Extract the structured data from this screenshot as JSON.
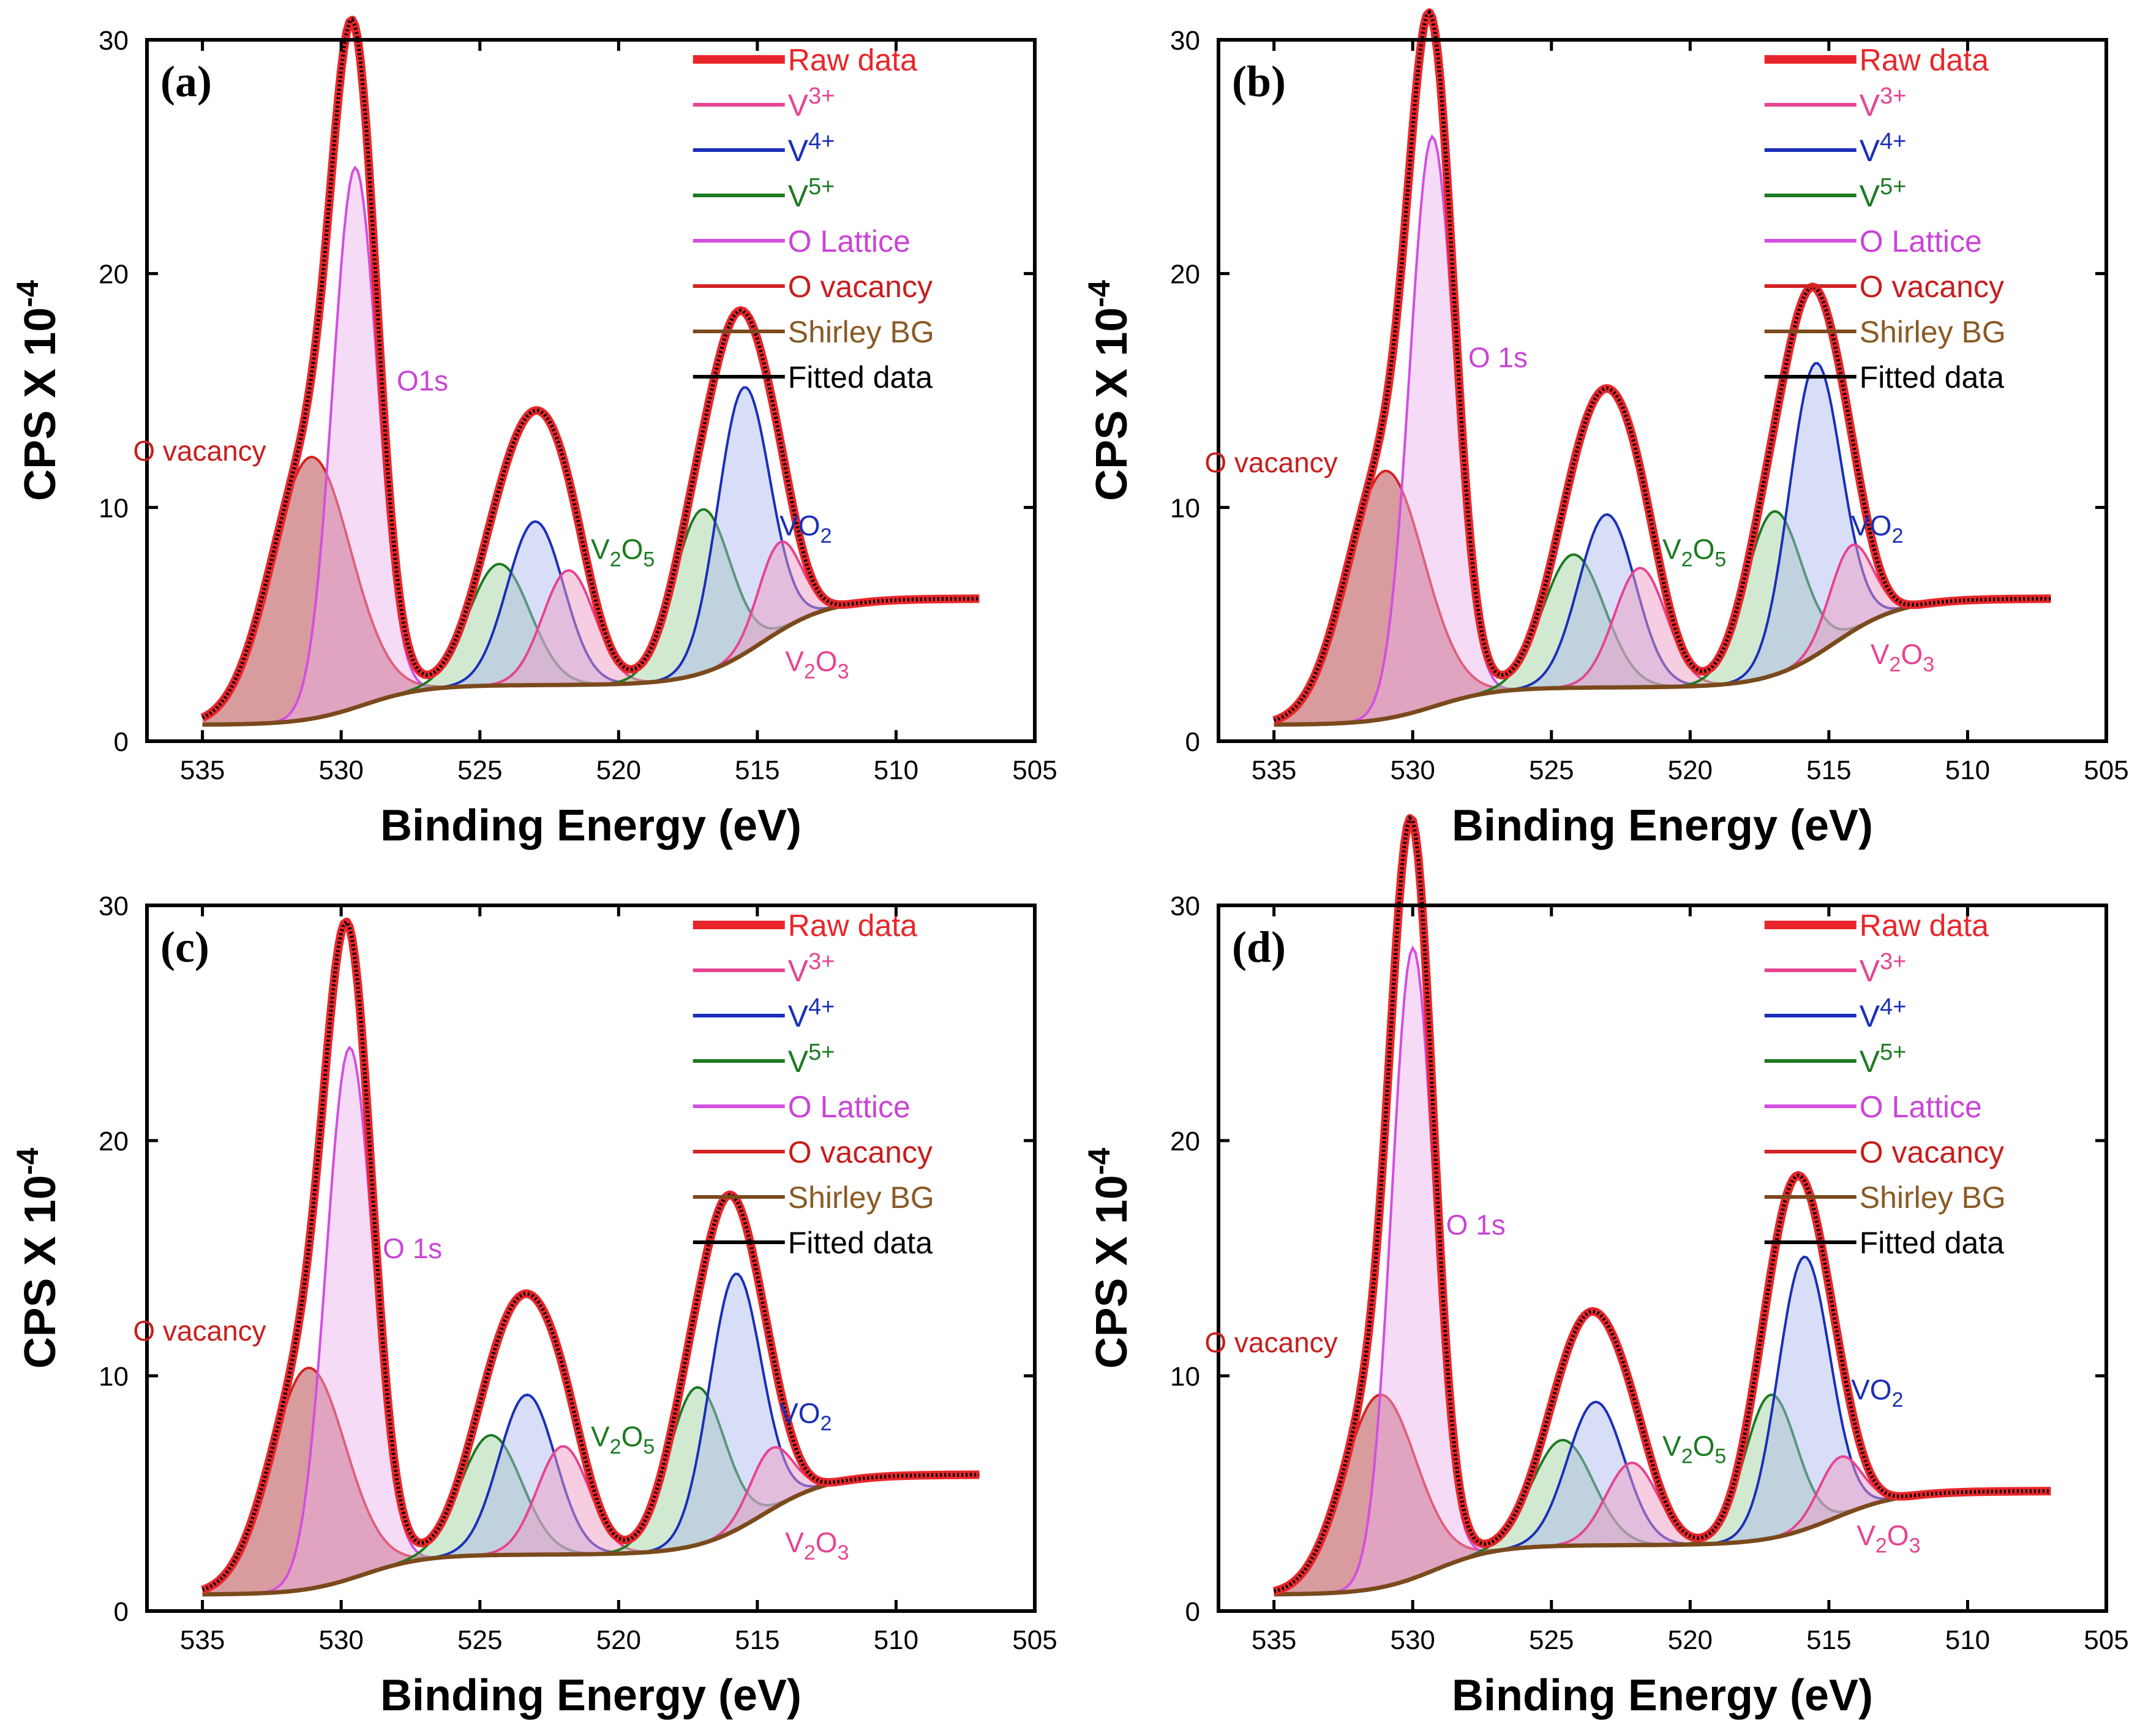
{
  "chart_data": [
    {
      "type": "line",
      "panel_label": "(a)",
      "xlabel": "Binding Energy (eV)",
      "ylabel": "CPS X 10",
      "ylabel_exponent": "-4",
      "xlim": [
        537,
        505
      ],
      "ylim": [
        0,
        30
      ],
      "xticks": [
        "535",
        "530",
        "525",
        "520",
        "515",
        "510",
        "505"
      ],
      "yticks": [
        "0",
        "10",
        "20",
        "30"
      ],
      "legend_position": "top-right",
      "legend": [
        {
          "key": "raw",
          "label": "Raw data",
          "color": "#e8262a",
          "text_color": "#e8262a"
        },
        {
          "key": "v3",
          "label": "V",
          "sup": "3+",
          "color": "#e64492",
          "text_color": "#e64492"
        },
        {
          "key": "v4",
          "label": "V",
          "sup": "4+",
          "color": "#1a2fb8",
          "text_color": "#1a2fb8"
        },
        {
          "key": "v5",
          "label": "V",
          "sup": "5+",
          "color": "#1d7a22",
          "text_color": "#1d7a22"
        },
        {
          "key": "olat",
          "label": "O Lattice",
          "color": "#d34fe0",
          "text_color": "#c945d6"
        },
        {
          "key": "ovac",
          "label": "O vacancy",
          "color": "#d42222",
          "text_color": "#c81e1e"
        },
        {
          "key": "bg",
          "label": "Shirley BG",
          "color": "#7a4a1c",
          "text_color": "#8a5a24"
        },
        {
          "key": "fit",
          "label": "Fitted data",
          "color": "#000000",
          "text_color": "#000000"
        }
      ],
      "annotations": [
        {
          "key": "o1s",
          "text": "O1s",
          "color": "#c945d6",
          "x": 528.0,
          "y": 15.0
        },
        {
          "key": "ovac",
          "text": "O vacancy",
          "color": "#c81e1e",
          "x": 537.5,
          "y": 12.0
        },
        {
          "key": "v2o5",
          "text": "V",
          "sub": "2",
          "text2": "O",
          "sub2": "5",
          "color": "#1d7a22",
          "x": 521.0,
          "y": 7.8
        },
        {
          "key": "vo2",
          "text": "VO",
          "sub": "2",
          "color": "#1a2fb8",
          "x": 514.2,
          "y": 8.8
        },
        {
          "key": "v2o3",
          "text": "V",
          "sub": "2",
          "text2": "O",
          "sub2": "3",
          "color": "#e64492",
          "x": 514.0,
          "y": 3.0
        }
      ],
      "background": {
        "start": 6.1,
        "mid": 4.4,
        "end": 0.7
      },
      "peaks": [
        {
          "species": "ovac",
          "center": 531.1,
          "height": 11.2,
          "fwhm": 3.4
        },
        {
          "species": "olat",
          "center": 529.5,
          "height": 23.1,
          "fwhm": 1.9
        },
        {
          "species": "v5",
          "center": 524.3,
          "height": 5.2,
          "fwhm": 2.6
        },
        {
          "species": "v4",
          "center": 523.0,
          "height": 7.0,
          "fwhm": 2.4
        },
        {
          "species": "v3",
          "center": 521.8,
          "height": 4.9,
          "fwhm": 2.2
        },
        {
          "species": "v5",
          "center": 517.0,
          "height": 7.0,
          "fwhm": 2.4
        },
        {
          "species": "v4",
          "center": 515.5,
          "height": 11.4,
          "fwhm": 2.2
        },
        {
          "species": "v3",
          "center": 514.2,
          "height": 3.8,
          "fwhm": 1.8
        }
      ]
    },
    {
      "type": "line",
      "panel_label": "(b)",
      "xlabel": "Binding Energy (eV)",
      "ylabel": "CPS X 10",
      "ylabel_exponent": "-4",
      "xlim": [
        537,
        505
      ],
      "ylim": [
        0,
        30
      ],
      "xticks": [
        "535",
        "530",
        "525",
        "520",
        "515",
        "510",
        "505"
      ],
      "yticks": [
        "0",
        "10",
        "20",
        "30"
      ],
      "legend_position": "top-right",
      "legend": [
        {
          "key": "raw",
          "label": "Raw data",
          "color": "#e8262a",
          "text_color": "#e8262a"
        },
        {
          "key": "v3",
          "label": "V",
          "sup": "3+",
          "color": "#e64492",
          "text_color": "#e64492"
        },
        {
          "key": "v4",
          "label": "V",
          "sup": "4+",
          "color": "#1a2fb8",
          "text_color": "#1a2fb8"
        },
        {
          "key": "v5",
          "label": "V",
          "sup": "5+",
          "color": "#1d7a22",
          "text_color": "#1d7a22"
        },
        {
          "key": "olat",
          "label": "O Lattice",
          "color": "#d34fe0",
          "text_color": "#c945d6"
        },
        {
          "key": "ovac",
          "label": "O vacancy",
          "color": "#d42222",
          "text_color": "#c81e1e"
        },
        {
          "key": "bg",
          "label": "Shirley BG",
          "color": "#7a4a1c",
          "text_color": "#8a5a24"
        },
        {
          "key": "fit",
          "label": "Fitted data",
          "color": "#000000",
          "text_color": "#000000"
        }
      ],
      "annotations": [
        {
          "key": "o1s",
          "text": "O 1s",
          "color": "#c945d6",
          "x": 528.0,
          "y": 16.0
        },
        {
          "key": "ovac",
          "text": "O vacancy",
          "color": "#c81e1e",
          "x": 537.5,
          "y": 11.5
        },
        {
          "key": "v2o5",
          "text": "V",
          "sub": "2",
          "text2": "O",
          "sub2": "5",
          "color": "#1d7a22",
          "x": 521.0,
          "y": 7.8
        },
        {
          "key": "vo2",
          "text": "VO",
          "sub": "2",
          "color": "#1a2fb8",
          "x": 514.2,
          "y": 8.8
        },
        {
          "key": "v2o3",
          "text": "V",
          "sub": "2",
          "text2": "O",
          "sub2": "3",
          "color": "#e64492",
          "x": 513.5,
          "y": 3.3
        }
      ],
      "background": {
        "start": 6.1,
        "mid": 4.5,
        "end": 0.7
      },
      "peaks": [
        {
          "species": "ovac",
          "center": 531.0,
          "height": 10.6,
          "fwhm": 3.3
        },
        {
          "species": "olat",
          "center": 529.3,
          "height": 24.4,
          "fwhm": 1.9
        },
        {
          "species": "v5",
          "center": 524.2,
          "height": 5.7,
          "fwhm": 2.6
        },
        {
          "species": "v4",
          "center": 523.0,
          "height": 7.4,
          "fwhm": 2.4
        },
        {
          "species": "v3",
          "center": 521.8,
          "height": 5.1,
          "fwhm": 2.2
        },
        {
          "species": "v5",
          "center": 517.0,
          "height": 7.0,
          "fwhm": 2.4
        },
        {
          "species": "v4",
          "center": 515.5,
          "height": 12.5,
          "fwhm": 2.2
        },
        {
          "species": "v3",
          "center": 514.2,
          "height": 3.7,
          "fwhm": 1.8
        }
      ]
    },
    {
      "type": "line",
      "panel_label": "(c)",
      "xlabel": "Binding Energy (eV)",
      "ylabel": "CPS X 10",
      "ylabel_exponent": "-4",
      "xlim": [
        537,
        505
      ],
      "ylim": [
        0,
        30
      ],
      "xticks": [
        "535",
        "530",
        "525",
        "520",
        "515",
        "510",
        "505"
      ],
      "yticks": [
        "0",
        "10",
        "20",
        "30"
      ],
      "legend_position": "top-right",
      "legend": [
        {
          "key": "raw",
          "label": "Raw data",
          "color": "#e8262a",
          "text_color": "#e8262a"
        },
        {
          "key": "v3",
          "label": "V",
          "sup": "3+",
          "color": "#e64492",
          "text_color": "#e64492"
        },
        {
          "key": "v4",
          "label": "V",
          "sup": "4+",
          "color": "#1a2fb8",
          "text_color": "#1a2fb8"
        },
        {
          "key": "v5",
          "label": "V",
          "sup": "5+",
          "color": "#1d7a22",
          "text_color": "#1d7a22"
        },
        {
          "key": "olat",
          "label": "O Lattice",
          "color": "#d34fe0",
          "text_color": "#c945d6"
        },
        {
          "key": "ovac",
          "label": "O vacancy",
          "color": "#d42222",
          "text_color": "#c81e1e"
        },
        {
          "key": "bg",
          "label": "Shirley BG",
          "color": "#7a4a1c",
          "text_color": "#8a5a24"
        },
        {
          "key": "fit",
          "label": "Fitted data",
          "color": "#000000",
          "text_color": "#000000"
        }
      ],
      "annotations": [
        {
          "key": "o1s",
          "text": "O 1s",
          "color": "#c945d6",
          "x": 528.5,
          "y": 15.0
        },
        {
          "key": "ovac",
          "text": "O vacancy",
          "color": "#c81e1e",
          "x": 537.5,
          "y": 11.5
        },
        {
          "key": "v2o5",
          "text": "V",
          "sub": "2",
          "text2": "O",
          "sub2": "5",
          "color": "#1d7a22",
          "x": 521.0,
          "y": 7.0
        },
        {
          "key": "vo2",
          "text": "VO",
          "sub": "2",
          "color": "#1a2fb8",
          "x": 514.2,
          "y": 8.0
        },
        {
          "key": "v2o3",
          "text": "V",
          "sub": "2",
          "text2": "O",
          "sub2": "3",
          "color": "#e64492",
          "x": 514.0,
          "y": 2.5
        }
      ],
      "background": {
        "start": 5.8,
        "mid": 4.1,
        "end": 0.7
      },
      "peaks": [
        {
          "species": "ovac",
          "center": 531.2,
          "height": 9.4,
          "fwhm": 3.2
        },
        {
          "species": "olat",
          "center": 529.7,
          "height": 22.6,
          "fwhm": 2.0
        },
        {
          "species": "v5",
          "center": 524.6,
          "height": 5.1,
          "fwhm": 2.6
        },
        {
          "species": "v4",
          "center": 523.3,
          "height": 6.8,
          "fwhm": 2.4
        },
        {
          "species": "v3",
          "center": 522.0,
          "height": 4.6,
          "fwhm": 2.2
        },
        {
          "species": "v5",
          "center": 517.2,
          "height": 6.7,
          "fwhm": 2.4
        },
        {
          "species": "v4",
          "center": 515.8,
          "height": 10.9,
          "fwhm": 2.2
        },
        {
          "species": "v3",
          "center": 514.5,
          "height": 2.6,
          "fwhm": 1.8
        }
      ]
    },
    {
      "type": "line",
      "panel_label": "(d)",
      "xlabel": "Binding Energy (eV)",
      "ylabel": "CPS X 10",
      "ylabel_exponent": "-4",
      "xlim": [
        537,
        505
      ],
      "ylim": [
        0,
        30
      ],
      "xticks": [
        "535",
        "530",
        "525",
        "520",
        "515",
        "510",
        "505"
      ],
      "yticks": [
        "0",
        "10",
        "20",
        "30"
      ],
      "legend_position": "top-right",
      "legend": [
        {
          "key": "raw",
          "label": "Raw data",
          "color": "#e8262a",
          "text_color": "#e8262a"
        },
        {
          "key": "v3",
          "label": "V",
          "sup": "3+",
          "color": "#e64492",
          "text_color": "#e64492"
        },
        {
          "key": "v4",
          "label": "V",
          "sup": "4+",
          "color": "#1a2fb8",
          "text_color": "#1a2fb8"
        },
        {
          "key": "v5",
          "label": "V",
          "sup": "5+",
          "color": "#1d7a22",
          "text_color": "#1d7a22"
        },
        {
          "key": "olat",
          "label": "O Lattice",
          "color": "#d34fe0",
          "text_color": "#c945d6"
        },
        {
          "key": "ovac",
          "label": "O vacancy",
          "color": "#d42222",
          "text_color": "#c81e1e"
        },
        {
          "key": "bg",
          "label": "Shirley BG",
          "color": "#7a4a1c",
          "text_color": "#8a5a24"
        },
        {
          "key": "fit",
          "label": "Fitted data",
          "color": "#000000",
          "text_color": "#000000"
        }
      ],
      "annotations": [
        {
          "key": "o1s",
          "text": "O 1s",
          "color": "#c945d6",
          "x": 528.8,
          "y": 16.0
        },
        {
          "key": "ovac",
          "text": "O vacancy",
          "color": "#c81e1e",
          "x": 537.5,
          "y": 11.0
        },
        {
          "key": "v2o5",
          "text": "V",
          "sub": "2",
          "text2": "O",
          "sub2": "5",
          "color": "#1d7a22",
          "x": 521.0,
          "y": 6.6
        },
        {
          "key": "vo2",
          "text": "VO",
          "sub": "2",
          "color": "#1a2fb8",
          "x": 514.2,
          "y": 9.0
        },
        {
          "key": "v2o3",
          "text": "V",
          "sub": "2",
          "text2": "O",
          "sub2": "3",
          "color": "#e64492",
          "x": 514.0,
          "y": 2.8
        }
      ],
      "background": {
        "start": 5.1,
        "mid": 3.0,
        "end": 0.7
      },
      "peaks": [
        {
          "species": "ovac",
          "center": 531.2,
          "height": 8.2,
          "fwhm": 3.1
        },
        {
          "species": "olat",
          "center": 530.0,
          "height": 26.8,
          "fwhm": 1.8
        },
        {
          "species": "v5",
          "center": 524.6,
          "height": 4.5,
          "fwhm": 2.6
        },
        {
          "species": "v4",
          "center": 523.4,
          "height": 6.1,
          "fwhm": 2.4
        },
        {
          "species": "v3",
          "center": 522.1,
          "height": 3.5,
          "fwhm": 2.2
        },
        {
          "species": "v5",
          "center": 517.1,
          "height": 6.1,
          "fwhm": 2.2
        },
        {
          "species": "v4",
          "center": 515.9,
          "height": 11.6,
          "fwhm": 2.2
        },
        {
          "species": "v3",
          "center": 514.6,
          "height": 2.5,
          "fwhm": 1.8
        }
      ]
    }
  ]
}
